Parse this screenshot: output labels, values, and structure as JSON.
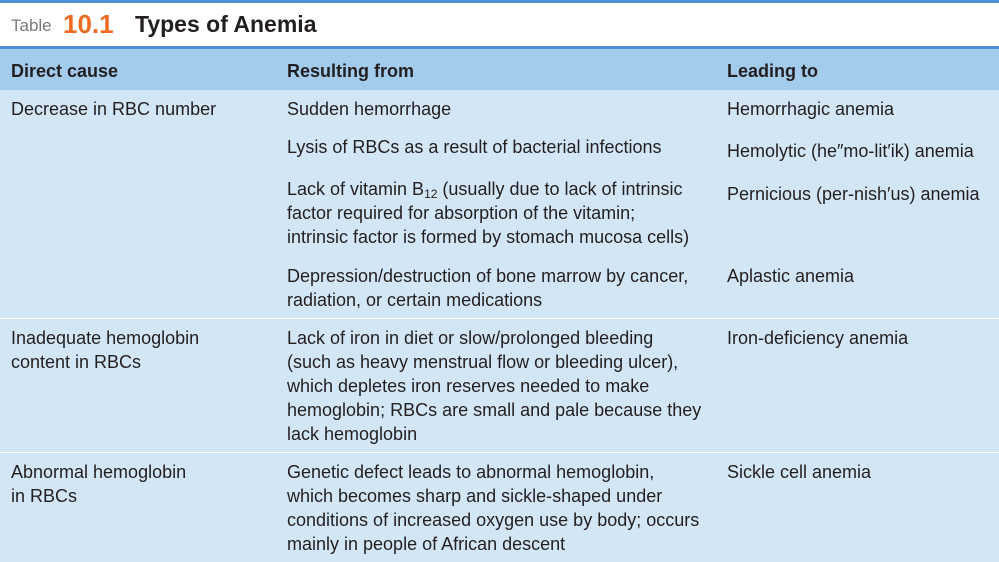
{
  "title": {
    "label": "Table",
    "number": "10.1",
    "text": "Types of Anemia"
  },
  "headers": {
    "direct_cause": "Direct cause",
    "resulting_from": "Resulting from",
    "leading_to": "Leading to"
  },
  "rows": [
    {
      "direct_cause": [
        "Decrease in RBC number"
      ],
      "entries": [
        {
          "resulting_from": [
            "Sudden hemorrhage"
          ],
          "leading_to": "Hemorrhagic anemia"
        },
        {
          "resulting_from": [
            "Lysis of RBCs as a result of bacterial infections"
          ],
          "leading_to": "Hemolytic (he″mo-lit′ik) anemia"
        },
        {
          "resulting_from_b12": {
            "before": "Lack of vitamin B",
            "sub": "12",
            "after": " (usually due to lack of intrinsic"
          },
          "resulting_from": [
            "factor required for absorption of the vitamin;",
            "intrinsic factor is formed by stomach mucosa cells)"
          ],
          "leading_to": "Pernicious (per-nish′us) anemia"
        },
        {
          "resulting_from": [
            "Depression/destruction of bone marrow by cancer,",
            "radiation, or certain medications"
          ],
          "leading_to": "Aplastic anemia"
        }
      ]
    },
    {
      "direct_cause": [
        "Inadequate hemoglobin",
        "content in RBCs"
      ],
      "entries": [
        {
          "resulting_from": [
            "Lack of iron in diet or slow/prolonged bleeding",
            "(such as heavy menstrual flow or bleeding ulcer),",
            "which depletes iron reserves needed to make",
            "hemoglobin; RBCs are small and pale because they",
            "lack hemoglobin"
          ],
          "leading_to": "Iron-deficiency anemia"
        }
      ]
    },
    {
      "direct_cause": [
        "Abnormal hemoglobin",
        "in RBCs"
      ],
      "entries": [
        {
          "resulting_from": [
            "Genetic defect leads to abnormal hemoglobin,",
            "which becomes sharp and sickle-shaped under",
            "conditions of increased oxygen use by body; occurs",
            "mainly in people of African descent"
          ],
          "leading_to": "Sickle cell anemia"
        }
      ]
    }
  ]
}
